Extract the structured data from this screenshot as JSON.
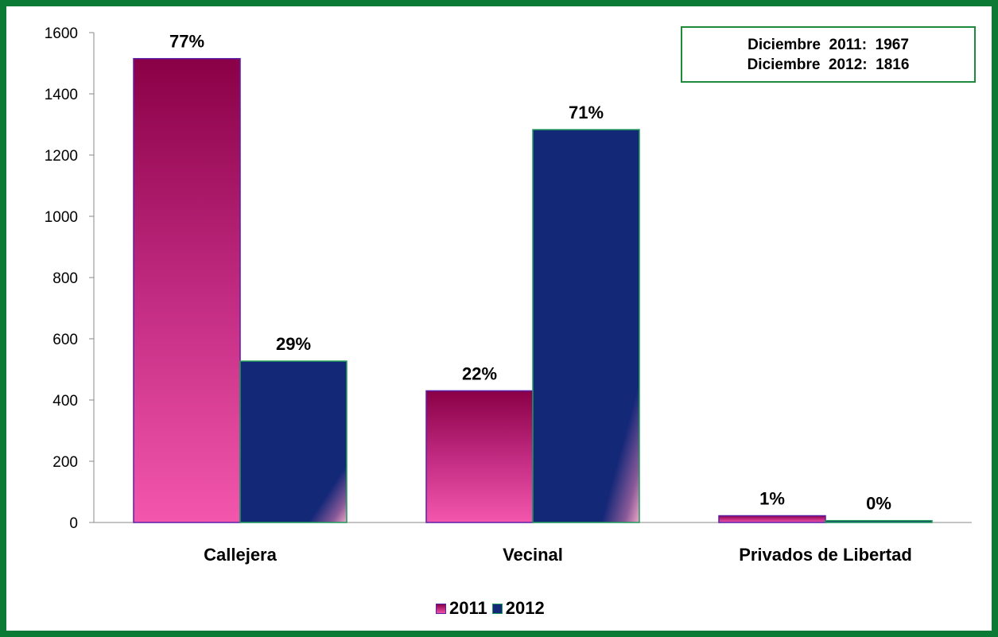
{
  "info_box": {
    "line1": "Diciembre  2011:  1967",
    "line2": "Diciembre  2012:  1816"
  },
  "colors": {
    "frame": "#0a7a34",
    "series_2011_top": "#8c0048",
    "series_2011_bottom": "#f050a8",
    "series_2012": "#142878",
    "series_2012_edge": "#1f9a5a"
  },
  "chart_data": {
    "type": "bar",
    "title": "",
    "xlabel": "",
    "ylabel": "",
    "categories": [
      "Callejera",
      "Vecinal",
      "Privados de Libertad"
    ],
    "ylim": [
      0,
      1600
    ],
    "yticks": [
      0,
      200,
      400,
      600,
      800,
      1000,
      1200,
      1400,
      1600
    ],
    "grid": false,
    "legend_position": "bottom",
    "series": [
      {
        "name": "2011",
        "values": [
          1515,
          430,
          22
        ],
        "labels": [
          "77%",
          "22%",
          "1%"
        ]
      },
      {
        "name": "2012",
        "values": [
          527,
          1283,
          6
        ],
        "labels": [
          "29%",
          "71%",
          "0%"
        ]
      }
    ]
  }
}
